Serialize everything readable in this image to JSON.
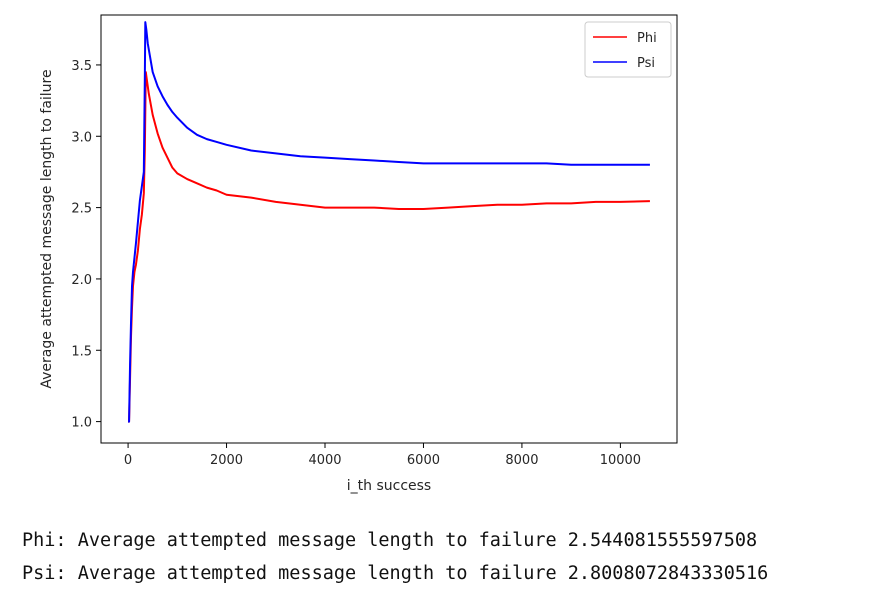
{
  "chart_data": {
    "type": "line",
    "title": "",
    "xlabel": "i_th success",
    "ylabel": "Average attempted message length to failure",
    "xlim": [
      -550,
      11150
    ],
    "ylim": [
      0.85,
      3.85
    ],
    "xticks": [
      0,
      2000,
      4000,
      6000,
      8000,
      10000
    ],
    "yticks": [
      1.0,
      1.5,
      2.0,
      2.5,
      3.0,
      3.5
    ],
    "xtick_labels": [
      "0",
      "2000",
      "4000",
      "6000",
      "8000",
      "10000"
    ],
    "ytick_labels": [
      "1.0",
      "1.5",
      "2.0",
      "2.5",
      "3.0",
      "3.5"
    ],
    "grid": false,
    "legend": {
      "position": "top-right"
    },
    "series": [
      {
        "name": "Phi",
        "color": "#ff0000",
        "x": [
          0,
          20,
          40,
          60,
          80,
          100,
          130,
          160,
          200,
          240,
          280,
          320,
          340,
          360,
          380,
          420,
          500,
          600,
          700,
          800,
          900,
          1000,
          1200,
          1400,
          1600,
          1800,
          2000,
          2500,
          3000,
          3500,
          4000,
          4500,
          5000,
          5500,
          6000,
          6500,
          7000,
          7500,
          8000,
          8500,
          9000,
          9500,
          10000,
          10600
        ],
        "y": [
          1.0,
          1.0,
          1.3,
          1.6,
          1.8,
          1.95,
          2.05,
          2.1,
          2.2,
          2.35,
          2.45,
          2.6,
          2.9,
          3.45,
          3.4,
          3.3,
          3.15,
          3.02,
          2.92,
          2.85,
          2.78,
          2.74,
          2.7,
          2.67,
          2.64,
          2.62,
          2.59,
          2.57,
          2.54,
          2.52,
          2.5,
          2.5,
          2.5,
          2.49,
          2.49,
          2.5,
          2.51,
          2.52,
          2.52,
          2.53,
          2.53,
          2.54,
          2.54,
          2.545
        ]
      },
      {
        "name": "Psi",
        "color": "#0000ff",
        "x": [
          0,
          20,
          40,
          60,
          80,
          100,
          130,
          160,
          200,
          240,
          280,
          320,
          340,
          350,
          370,
          400,
          450,
          500,
          600,
          700,
          800,
          900,
          1000,
          1200,
          1400,
          1600,
          1800,
          2000,
          2500,
          3000,
          3500,
          4000,
          4500,
          5000,
          5500,
          6000,
          6500,
          7000,
          7500,
          8000,
          8500,
          9000,
          9500,
          10000,
          10600
        ],
        "y": [
          1.0,
          1.0,
          1.4,
          1.7,
          1.95,
          2.05,
          2.15,
          2.25,
          2.4,
          2.55,
          2.65,
          2.75,
          3.4,
          3.8,
          3.75,
          3.65,
          3.55,
          3.45,
          3.35,
          3.28,
          3.22,
          3.17,
          3.13,
          3.06,
          3.01,
          2.98,
          2.96,
          2.94,
          2.9,
          2.88,
          2.86,
          2.85,
          2.84,
          2.83,
          2.82,
          2.81,
          2.81,
          2.81,
          2.81,
          2.81,
          2.81,
          2.8,
          2.8,
          2.8,
          2.8
        ]
      }
    ]
  },
  "output_lines": [
    "Phi: Average attempted message length to failure 2.544081555597508",
    "Psi: Average attempted message length to failure 2.8008072843330516"
  ]
}
